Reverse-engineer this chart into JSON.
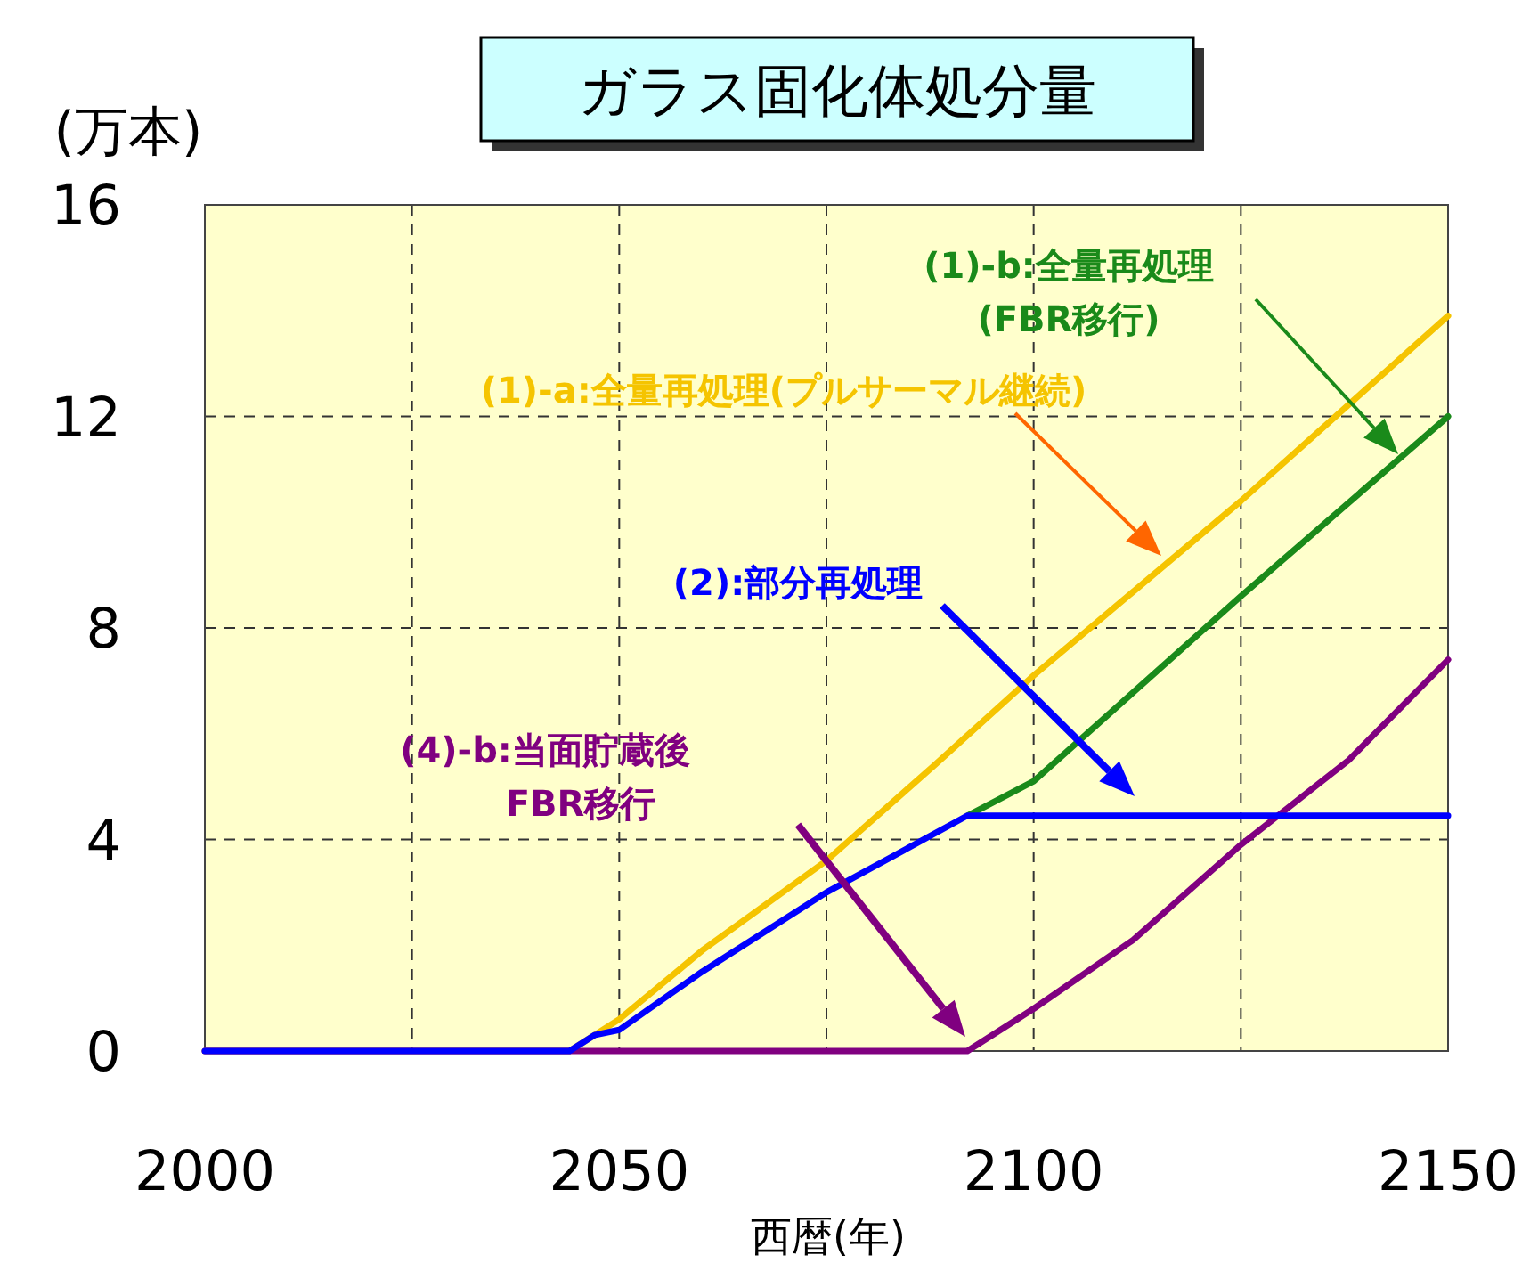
{
  "chart_data": {
    "type": "line",
    "title": "ガラス固化体処分量",
    "ylabel": "(万本)",
    "xlabel": "西暦(年)",
    "xlim": [
      2000,
      2150
    ],
    "ylim": [
      0,
      16
    ],
    "xticks": [
      2000,
      {
        "value": 2025,
        "label": null
      },
      2050,
      {
        "value": 2075,
        "label": null
      },
      2100,
      {
        "value": 2125,
        "label": null
      },
      2150
    ],
    "yticks": [
      0,
      4,
      8,
      12,
      16
    ],
    "grid": true,
    "legend": false,
    "marker": "none",
    "line_style": "solid",
    "series": [
      {
        "name": "(1)-a:全量再処理(プルサーマル継続)",
        "color": "#f5c400",
        "x": [
          2000,
          2044,
          2050,
          2060,
          2075,
          2088,
          2100,
          2125,
          2150
        ],
        "values": [
          0,
          0,
          0.6,
          1.9,
          3.6,
          5.4,
          7.1,
          10.4,
          13.9
        ]
      },
      {
        "name": "(1)-b:全量再処理\n(FBR移行)",
        "color": "#1a8a1a",
        "x": [
          2092,
          2100,
          2125,
          2150
        ],
        "values": [
          4.45,
          5.1,
          8.6,
          12.0
        ]
      },
      {
        "name": "(4)-b:当面貯蔵後\nFBR移行",
        "color": "#800080",
        "x": [
          2000,
          2092,
          2100,
          2112,
          2125,
          2138,
          2150
        ],
        "values": [
          0,
          0,
          0.8,
          2.1,
          3.9,
          5.5,
          7.4
        ]
      },
      {
        "name": "(2):部分再処理",
        "color": "#0000ff",
        "x": [
          2000,
          2044,
          2047,
          2050,
          2060,
          2075,
          2092,
          2150
        ],
        "values": [
          0,
          0,
          0.3,
          0.4,
          1.5,
          3.0,
          4.45,
          4.45
        ]
      }
    ]
  }
}
